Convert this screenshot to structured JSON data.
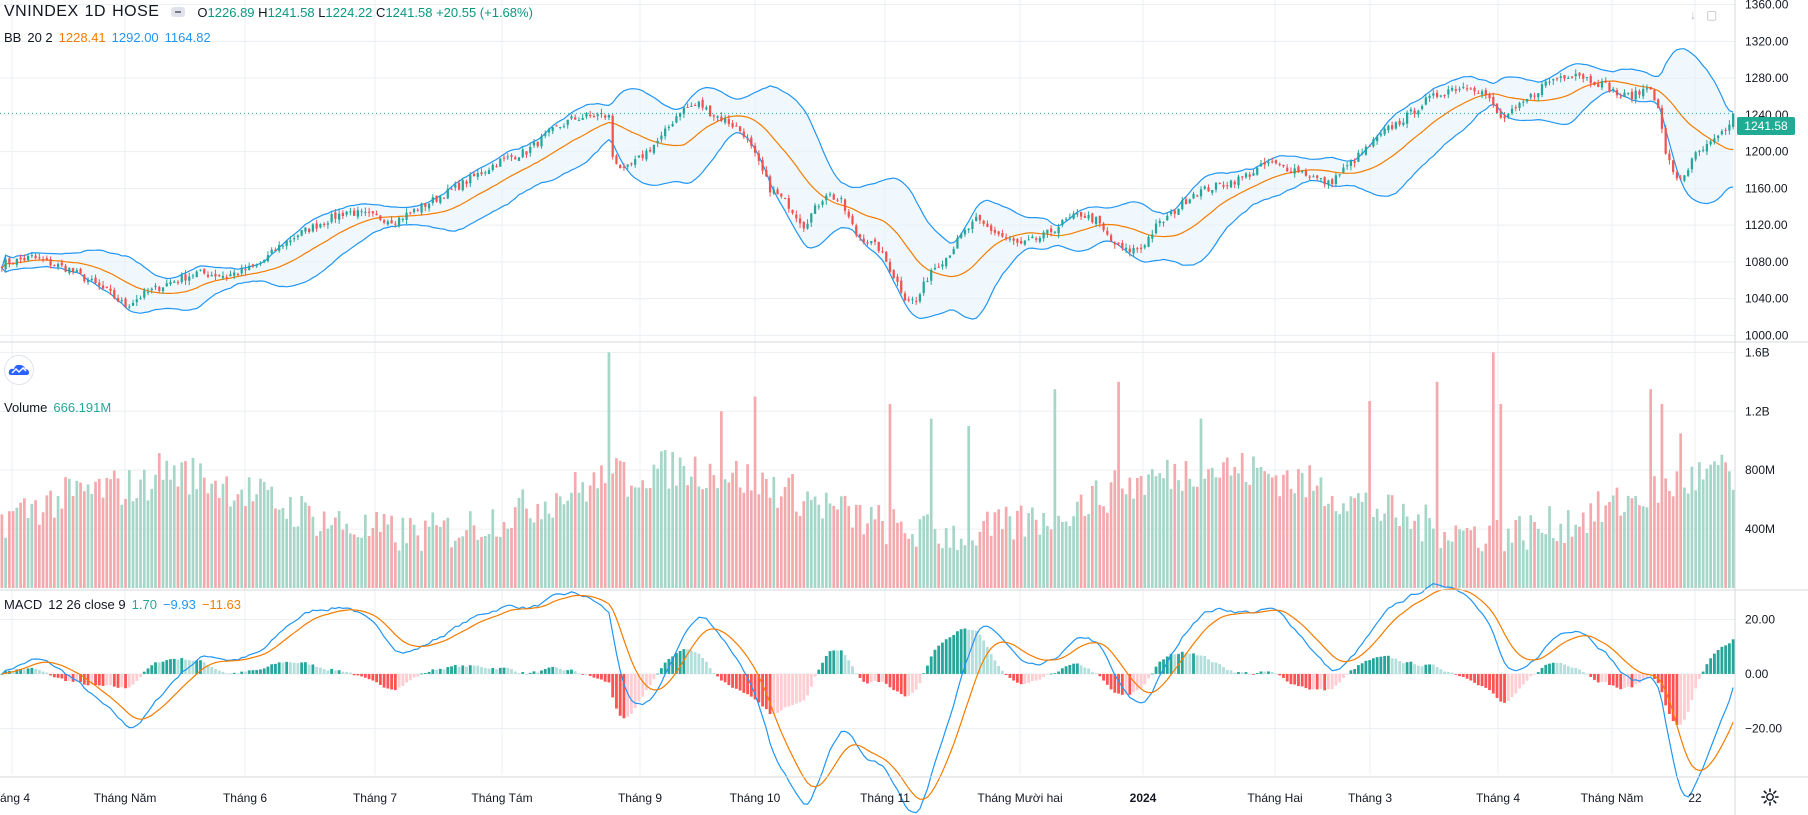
{
  "header": {
    "symbol": "VNINDEX",
    "interval": "1D",
    "exchange": "HOSE",
    "ohlc": {
      "o_label": "O",
      "o": "1226.89",
      "h_label": "H",
      "h": "1241.58",
      "l_label": "L",
      "l": "1224.22",
      "c_label": "C",
      "c": "1241.58",
      "change": "+20.55 (+1.68%)"
    }
  },
  "indicators": {
    "bb": {
      "name": "BB",
      "params": "20 2",
      "basis": "1228.41",
      "upper": "1292.00",
      "lower": "1164.82"
    },
    "volume": {
      "name": "Volume",
      "value": "666.191M"
    },
    "macd": {
      "name": "MACD",
      "params": "12 26 close 9",
      "hist": "1.70",
      "macd": "−9.93",
      "signal": "−11.63"
    }
  },
  "last_price_tag": "1241.58",
  "colors": {
    "up": "#26a69a",
    "down": "#ef5350",
    "up_volume": "#a5d6c8",
    "down_volume": "#f4a9ad",
    "bb_band": "#2196f3",
    "bb_basis": "#f57c00",
    "bb_fill": "#e3f2fd",
    "macd_line": "#2196f3",
    "signal_line": "#f57c00",
    "hist_up_strong": "#26a69a",
    "hist_up_weak": "#b2dfdb",
    "hist_down_strong": "#ff5252",
    "hist_down_weak": "#ffcdd2",
    "grid": "#eceff2",
    "axis_text": "#131722"
  },
  "icons": {
    "logo": "tradingview-cloud-icon",
    "settings": "gear-icon"
  },
  "chart_data": [
    {
      "type": "candlestick",
      "pane": "price",
      "title": "VNINDEX 1D HOSE",
      "x_labels": [
        "áng 4",
        "Tháng Năm",
        "Tháng 6",
        "Tháng 7",
        "Tháng Tám",
        "Tháng 9",
        "Tháng 10",
        "Tháng 11",
        "Tháng Mười hai",
        "2024",
        "Tháng Hai",
        "Tháng 3",
        "Tháng 4",
        "Tháng Năm",
        "22"
      ],
      "y_ticks": [
        1000,
        1040,
        1080,
        1120,
        1160,
        1200,
        1240,
        1280,
        1320,
        1360
      ],
      "y_tick_labels": [
        "1000.00",
        "1040.00",
        "1080.00",
        "1120.00",
        "1160.00",
        "1200.00",
        "1240.00",
        "1280.00",
        "1320.00",
        "1360.00"
      ],
      "ylim": [
        995,
        1365
      ],
      "close_path": [
        [
          0,
          1078
        ],
        [
          8,
          1085
        ],
        [
          18,
          1072
        ],
        [
          28,
          1048
        ],
        [
          33,
          1032
        ],
        [
          38,
          1045
        ],
        [
          45,
          1058
        ],
        [
          52,
          1068
        ],
        [
          60,
          1065
        ],
        [
          68,
          1075
        ],
        [
          75,
          1100
        ],
        [
          80,
          1112
        ],
        [
          85,
          1122
        ],
        [
          92,
          1135
        ],
        [
          98,
          1130
        ],
        [
          105,
          1125
        ],
        [
          112,
          1140
        ],
        [
          120,
          1158
        ],
        [
          127,
          1175
        ],
        [
          133,
          1190
        ],
        [
          140,
          1200
        ],
        [
          146,
          1220
        ],
        [
          152,
          1235
        ],
        [
          158,
          1240
        ],
        [
          162,
          1238
        ],
        [
          163,
          1195
        ],
        [
          166,
          1178
        ],
        [
          170,
          1192
        ],
        [
          176,
          1215
        ],
        [
          181,
          1245
        ],
        [
          186,
          1252
        ],
        [
          190,
          1240
        ],
        [
          194,
          1232
        ],
        [
          198,
          1220
        ],
        [
          201,
          1195
        ],
        [
          205,
          1160
        ],
        [
          210,
          1142
        ],
        [
          214,
          1120
        ],
        [
          220,
          1155
        ],
        [
          224,
          1145
        ],
        [
          228,
          1110
        ],
        [
          234,
          1095
        ],
        [
          238,
          1065
        ],
        [
          241,
          1042
        ],
        [
          244,
          1036
        ],
        [
          248,
          1072
        ],
        [
          252,
          1085
        ],
        [
          256,
          1108
        ],
        [
          260,
          1125
        ],
        [
          264,
          1115
        ],
        [
          268,
          1105
        ],
        [
          272,
          1098
        ],
        [
          278,
          1108
        ],
        [
          284,
          1125
        ],
        [
          288,
          1132
        ],
        [
          292,
          1125
        ],
        [
          296,
          1102
        ],
        [
          300,
          1092
        ],
        [
          304,
          1095
        ],
        [
          308,
          1118
        ],
        [
          312,
          1132
        ],
        [
          318,
          1155
        ],
        [
          324,
          1162
        ],
        [
          330,
          1170
        ],
        [
          334,
          1178
        ],
        [
          338,
          1188
        ],
        [
          342,
          1183
        ],
        [
          346,
          1180
        ],
        [
          350,
          1172
        ],
        [
          354,
          1165
        ],
        [
          358,
          1180
        ],
        [
          362,
          1195
        ],
        [
          366,
          1210
        ],
        [
          370,
          1225
        ],
        [
          374,
          1235
        ],
        [
          380,
          1255
        ],
        [
          386,
          1268
        ],
        [
          392,
          1272
        ],
        [
          396,
          1262
        ],
        [
          400,
          1235
        ],
        [
          404,
          1245
        ],
        [
          408,
          1260
        ],
        [
          412,
          1275
        ],
        [
          416,
          1282
        ],
        [
          420,
          1286
        ],
        [
          424,
          1278
        ],
        [
          428,
          1272
        ],
        [
          432,
          1260
        ],
        [
          436,
          1262
        ],
        [
          440,
          1272
        ],
        [
          442,
          1245
        ],
        [
          444,
          1200
        ],
        [
          446,
          1175
        ],
        [
          448,
          1170
        ],
        [
          450,
          1182
        ],
        [
          452,
          1196
        ],
        [
          455,
          1205
        ],
        [
          458,
          1215
        ],
        [
          460,
          1221
        ],
        [
          462,
          1241.58
        ]
      ],
      "series": [
        {
          "name": "BB basis",
          "values_ref": "computed 20-period SMA of close"
        },
        {
          "name": "BB upper",
          "values_ref": "basis + 2 stdev"
        },
        {
          "name": "BB lower",
          "values_ref": "basis - 2 stdev"
        }
      ],
      "last": {
        "open": 1226.89,
        "high": 1241.58,
        "low": 1224.22,
        "close": 1241.58
      }
    },
    {
      "type": "bar",
      "pane": "volume",
      "y_ticks": [
        400,
        800,
        1200,
        1600
      ],
      "y_tick_labels": [
        "400M",
        "800M",
        "1.2B",
        "1.6B"
      ],
      "ylim": [
        0,
        1650
      ],
      "unit": "millions",
      "last_value_millions": 666.191,
      "spike_markers": [
        [
          162,
          1600
        ],
        [
          167,
          620
        ],
        [
          192,
          1200
        ],
        [
          201,
          1300
        ],
        [
          237,
          1250
        ],
        [
          248,
          1150
        ],
        [
          258,
          1100
        ],
        [
          281,
          1350
        ],
        [
          298,
          1400
        ],
        [
          320,
          1150
        ],
        [
          365,
          1270
        ],
        [
          383,
          1400
        ],
        [
          398,
          1600
        ],
        [
          400,
          1250
        ],
        [
          440,
          1350
        ],
        [
          443,
          1250
        ],
        [
          448,
          1050
        ],
        [
          462,
          666.191
        ]
      ]
    },
    {
      "type": "line",
      "pane": "macd",
      "y_ticks": [
        -20,
        0,
        20
      ],
      "y_tick_labels": [
        "−20.00",
        "0.00",
        "20.00"
      ],
      "ylim": [
        -37,
        30
      ],
      "series": [
        {
          "name": "MACD"
        },
        {
          "name": "Signal"
        },
        {
          "name": "Histogram"
        }
      ],
      "last": {
        "hist": 1.7,
        "macd": -9.93,
        "signal": -11.63
      }
    }
  ]
}
